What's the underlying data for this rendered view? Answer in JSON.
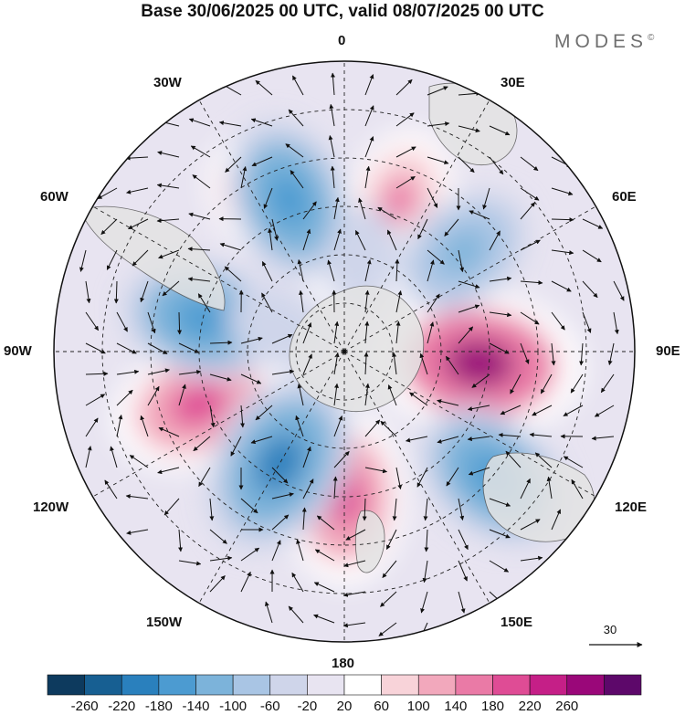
{
  "title": "Base 30/06/2025 00 UTC, valid 08/07/2025 00 UTC",
  "logo": "MODES",
  "logo_mark": "©",
  "longitude_labels": {
    "north": "0",
    "south": "180",
    "east": "90E",
    "west": "90W",
    "ne30": "30E",
    "ne60": "60E",
    "se120": "120E",
    "se150": "150E",
    "nw30": "30W",
    "nw60": "60W",
    "sw120": "120W",
    "sw150": "150W"
  },
  "vector_reference": "30",
  "colorbar": {
    "ticks": [
      "-260",
      "-220",
      "-180",
      "-140",
      "-100",
      "-60",
      "-20",
      "20",
      "60",
      "100",
      "140",
      "180",
      "220",
      "260"
    ],
    "colors": [
      "#0d3a5e",
      "#175f92",
      "#2a80bd",
      "#4c9bd1",
      "#7cb3da",
      "#a9c5e4",
      "#cfd5ea",
      "#e8e4f1",
      "#ffffff",
      "#f8d3d9",
      "#f2a8bc",
      "#ea7aa6",
      "#df4c95",
      "#c51f87",
      "#9a0779",
      "#5d086a"
    ]
  },
  "colors": {
    "land": "#e3e3e3",
    "grid": "#222222",
    "coast": "#555555"
  },
  "anomalies": [
    {
      "lon": 95,
      "lat": -48,
      "value": 260
    },
    {
      "lon": 180,
      "lat": -45,
      "value": 200
    },
    {
      "lon": 250,
      "lat": -42,
      "value": 200
    },
    {
      "lon": 20,
      "lat": -40,
      "value": 140
    },
    {
      "lon": 330,
      "lat": -35,
      "value": 100
    },
    {
      "lon": 45,
      "lat": -50,
      "value": 80
    },
    {
      "lon": 355,
      "lat": -60,
      "value": 60
    },
    {
      "lon": 130,
      "lat": -30,
      "value": -180
    },
    {
      "lon": 210,
      "lat": -50,
      "value": -220
    },
    {
      "lon": 283,
      "lat": -45,
      "value": -180
    },
    {
      "lon": 340,
      "lat": -40,
      "value": -180
    },
    {
      "lon": 50,
      "lat": -42,
      "value": -140
    },
    {
      "lon": 10,
      "lat": -60,
      "value": -60
    },
    {
      "lon": 290,
      "lat": -68,
      "value": -60
    }
  ]
}
